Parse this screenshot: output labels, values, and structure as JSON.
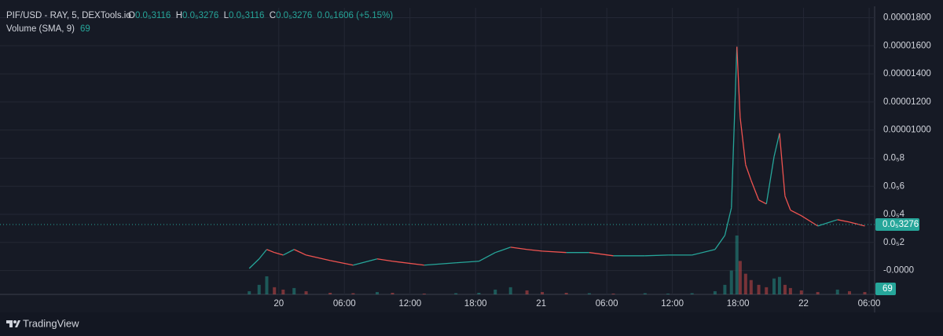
{
  "chart_data": {
    "type": "line",
    "title": "PIF/USD - RAY, 5, DEXTools.io",
    "ohlc": [
      {
        "label": "O",
        "value": "0.0₅3116"
      },
      {
        "label": "H",
        "value": "0.0₅3276"
      },
      {
        "label": "L",
        "value": "0.0₅3116"
      },
      {
        "label": "C",
        "value": "0.0₅3276"
      }
    ],
    "change": "0.0₆1606 (+5.15%)",
    "volume_title": "Volume (SMA, 9)",
    "volume_value": 69,
    "up_color": "#26a69a",
    "down_color": "#ef5350",
    "x": [
      -2.7,
      -1.8,
      -1.1,
      -0.4,
      0.4,
      1.4,
      2.5,
      4.7,
      6.8,
      9.0,
      10.4,
      13.3,
      16.2,
      18.3,
      19.8,
      21.2,
      22.7,
      24.1,
      26.3,
      28.4,
      30.6,
      33.5,
      35.6,
      37.8,
      39.9,
      40.8,
      41.4,
      41.9,
      42.2,
      42.7,
      43.2,
      43.9,
      44.6,
      45.3,
      45.8,
      46.3,
      46.8,
      47.8,
      49.3,
      51.1,
      52.2,
      53.6
    ],
    "series": [
      {
        "values": [
          1.5e-07,
          8.3e-07,
          1.5e-06,
          1.28e-06,
          1.1e-06,
          1.5e-06,
          1.1e-06,
          7.1e-07,
          3.8e-07,
          8.3e-07,
          6.6e-07,
          3.8e-07,
          5.5e-07,
          6.6e-07,
          1.28e-06,
          1.66e-06,
          1.5e-06,
          1.38e-06,
          1.28e-06,
          1.28e-06,
          1.05e-06,
          1.05e-06,
          1.1e-06,
          1.1e-06,
          1.5e-06,
          2.5e-06,
          4.46e-06,
          1.593e-05,
          1.09e-05,
          7.53e-06,
          6.42e-06,
          5.02e-06,
          4.74e-06,
          8.1e-06,
          9.77e-06,
          5.3e-06,
          4.3e-06,
          3.9e-06,
          3.17e-06,
          3.62e-06,
          3.45e-06,
          3.17e-06
        ]
      },
      {
        "axis": "y2",
        "values": [
          40,
          120,
          227,
          90,
          60,
          80,
          40,
          20,
          15,
          30,
          20,
          10,
          15,
          20,
          60,
          90,
          50,
          30,
          20,
          15,
          10,
          15,
          10,
          15,
          40,
          120,
          300,
          740,
          420,
          260,
          180,
          120,
          90,
          200,
          220,
          120,
          80,
          50,
          30,
          60,
          40,
          30
        ]
      }
    ],
    "xlim": [
      -25.5,
      54.5
    ],
    "xticks": [
      {
        "value": 0,
        "label": "20"
      },
      {
        "value": 6,
        "label": "06:00"
      },
      {
        "value": 12,
        "label": "12:00"
      },
      {
        "value": 18,
        "label": "18:00"
      },
      {
        "value": 24,
        "label": "21"
      },
      {
        "value": 30,
        "label": "06:00"
      },
      {
        "value": 36,
        "label": "12:00"
      },
      {
        "value": 42,
        "label": "18:00"
      },
      {
        "value": 48,
        "label": "22"
      },
      {
        "value": 54,
        "label": "06:00"
      }
    ],
    "ylim": [
      -1.7e-06,
      1.87e-05
    ],
    "yticks": [
      {
        "value": 1.8e-05,
        "label": "0.00001800"
      },
      {
        "value": 1.6e-05,
        "label": "0.00001600"
      },
      {
        "value": 1.4e-05,
        "label": "0.00001400"
      },
      {
        "value": 1.2e-05,
        "label": "0.00001200"
      },
      {
        "value": 1e-05,
        "label": "0.00001000"
      },
      {
        "value": 8e-06,
        "label": "0.0₅8"
      },
      {
        "value": 6e-06,
        "label": "0.0₅6"
      },
      {
        "value": 4e-06,
        "label": "0.0₅4"
      },
      {
        "value": 2e-06,
        "label": "0.0₅2"
      },
      {
        "value": 0,
        "label": "-0.0000"
      }
    ],
    "y2lim": [
      0,
      740
    ],
    "last_price": {
      "value": 3.276e-06,
      "label": "0.0₅3276"
    },
    "grid": true
  },
  "footer": {
    "brand": "TradingView"
  }
}
